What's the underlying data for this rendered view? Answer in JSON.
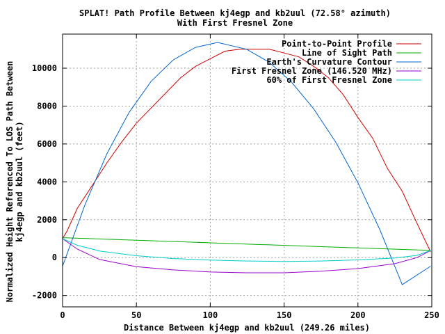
{
  "chart_data": {
    "type": "line",
    "title": "SPLAT! Path Profile Between kj4egp and kb2uul (72.58° azimuth)",
    "subtitle": "With First Fresnel Zone",
    "xlabel": "Distance Between kj4egp and kb2uul (249.26 miles)",
    "ylabel_line1": "Normalized Height Referenced To LOS Path Between",
    "ylabel_line2": "kj4egp and kb2uul (feet)",
    "xlim": [
      0,
      250
    ],
    "ylim": [
      -2600,
      11800
    ],
    "x_ticks": [
      0,
      50,
      100,
      150,
      200,
      250
    ],
    "y_ticks": [
      -2000,
      0,
      2000,
      4000,
      6000,
      8000,
      10000
    ],
    "grid": true,
    "legend_position": "top-right",
    "series": [
      {
        "name": "Point-to-Point Profile",
        "color": "#cc0000",
        "x": [
          0,
          3,
          10,
          20,
          30,
          40,
          50,
          60,
          70,
          80,
          90,
          100,
          110,
          120,
          130,
          140,
          150,
          160,
          170,
          180,
          190,
          200,
          210,
          220,
          230,
          240,
          249.26
        ],
        "y": [
          1000,
          1400,
          2600,
          3800,
          5000,
          6100,
          7100,
          7900,
          8700,
          9500,
          10100,
          10500,
          10900,
          11000,
          11000,
          11000,
          10800,
          10600,
          10100,
          9500,
          8600,
          7400,
          6300,
          4700,
          3500,
          1800,
          300
        ]
      },
      {
        "name": "Line of Sight Path",
        "color": "#00aa00",
        "x": [
          0,
          249.26
        ],
        "y": [
          1050,
          380
        ]
      },
      {
        "name": "Earth's Curvature Contour",
        "color": "#0066cc",
        "x": [
          0,
          15,
          30,
          45,
          60,
          75,
          90,
          105,
          124.63,
          140,
          155,
          170,
          185,
          200,
          215,
          230,
          249.26
        ],
        "y": [
          -450,
          2760,
          5480,
          7660,
          9310,
          10440,
          11100,
          11360,
          11000,
          10310,
          9270,
          7860,
          6090,
          3950,
          1440,
          -1430,
          -450
        ]
      },
      {
        "name": "First Fresnel Zone (146.520 MHz)",
        "color": "#9900cc",
        "x": [
          0,
          10,
          25,
          50,
          75,
          100,
          124.63,
          150,
          175,
          200,
          225,
          240,
          249.26
        ],
        "y": [
          1000,
          450,
          -100,
          -480,
          -650,
          -760,
          -800,
          -800,
          -720,
          -580,
          -320,
          0,
          380
        ]
      },
      {
        "name": "60% of First Fresnel Zone",
        "color": "#00cccc",
        "x": [
          0,
          10,
          25,
          50,
          75,
          100,
          124.63,
          150,
          175,
          200,
          225,
          240,
          249.26
        ],
        "y": [
          1000,
          650,
          350,
          100,
          -50,
          -130,
          -180,
          -200,
          -180,
          -120,
          -20,
          120,
          380
        ]
      }
    ]
  }
}
